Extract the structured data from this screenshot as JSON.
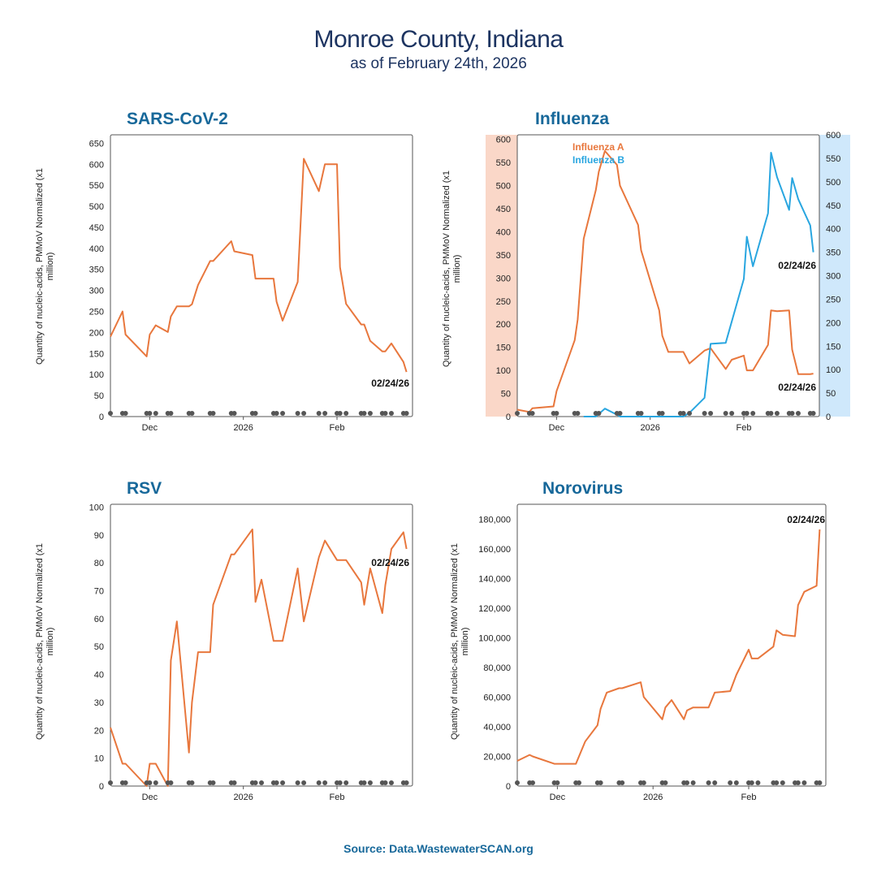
{
  "header": {
    "title": "Monroe County, Indiana",
    "subtitle": "as of February 24th, 2026"
  },
  "source": "Source: Data.WastewaterSCAN.org",
  "colors": {
    "series_a": "#e8773d",
    "series_b": "#29a6e0",
    "axis_band_left": "#fad7c8",
    "axis_band_right": "#cfe8fb",
    "sample_dot": "#555555",
    "title_blue": "#17689a"
  },
  "chart_data": [
    {
      "type": "line",
      "title": "SARS-CoV-2",
      "ylabel": "Quantity of nucleic-acids, PMMoV Normalized (x1 million)",
      "x_ticks": [
        {
          "label": "Dec",
          "date": "2025-12-01"
        },
        {
          "label": "2026",
          "date": "2026-01-01"
        },
        {
          "label": "Feb",
          "date": "2026-02-01"
        }
      ],
      "x_range": [
        "2025-11-18",
        "2026-02-26"
      ],
      "ylim": [
        0,
        670
      ],
      "y_ticks": [
        0,
        50,
        100,
        150,
        200,
        250,
        300,
        350,
        400,
        450,
        500,
        550,
        600,
        650
      ],
      "end_label": "02/24/26",
      "series": [
        {
          "values": [
            [
              "2025-11-18",
              190
            ],
            [
              "2025-11-22",
              250
            ],
            [
              "2025-11-23",
              195
            ],
            [
              "2025-11-30",
              143
            ],
            [
              "2025-12-01",
              195
            ],
            [
              "2025-12-03",
              217
            ],
            [
              "2025-12-07",
              201
            ],
            [
              "2025-12-08",
              238
            ],
            [
              "2025-12-10",
              262
            ],
            [
              "2025-12-14",
              262
            ],
            [
              "2025-12-15",
              267
            ],
            [
              "2025-12-17",
              313
            ],
            [
              "2025-12-21",
              370
            ],
            [
              "2025-12-22",
              370
            ],
            [
              "2025-12-28",
              417
            ],
            [
              "2025-12-29",
              393
            ],
            [
              "2026-01-04",
              384
            ],
            [
              "2026-01-05",
              328
            ],
            [
              "2026-01-11",
              328
            ],
            [
              "2026-01-12",
              273
            ],
            [
              "2026-01-14",
              228
            ],
            [
              "2026-01-19",
              320
            ],
            [
              "2026-01-21",
              613
            ],
            [
              "2026-01-26",
              536
            ],
            [
              "2026-01-28",
              600
            ],
            [
              "2026-02-01",
              600
            ],
            [
              "2026-02-02",
              355
            ],
            [
              "2026-02-04",
              268
            ],
            [
              "2026-02-09",
              219
            ],
            [
              "2026-02-10",
              219
            ],
            [
              "2026-02-12",
              180
            ],
            [
              "2026-02-16",
              155
            ],
            [
              "2026-02-17",
              155
            ],
            [
              "2026-02-19",
              174
            ],
            [
              "2026-02-23",
              130
            ],
            [
              "2026-02-24",
              106
            ]
          ]
        }
      ],
      "sample_dates": [
        "2025-11-18",
        "2025-11-22",
        "2025-11-23",
        "2025-11-30",
        "2025-12-01",
        "2025-12-03",
        "2025-12-07",
        "2025-12-08",
        "2025-12-14",
        "2025-12-15",
        "2025-12-21",
        "2025-12-22",
        "2025-12-28",
        "2025-12-29",
        "2026-01-04",
        "2026-01-05",
        "2026-01-11",
        "2026-01-12",
        "2026-01-14",
        "2026-01-19",
        "2026-01-21",
        "2026-01-26",
        "2026-01-28",
        "2026-02-01",
        "2026-02-02",
        "2026-02-04",
        "2026-02-09",
        "2026-02-10",
        "2026-02-12",
        "2026-02-16",
        "2026-02-17",
        "2026-02-19",
        "2026-02-23",
        "2026-02-24"
      ]
    },
    {
      "type": "line",
      "title": "Influenza",
      "ylabel": "Quantity of nucleic-acids, PMMoV Normalized (x1 million)",
      "x_ticks": [
        {
          "label": "Dec",
          "date": "2025-12-01"
        },
        {
          "label": "2026",
          "date": "2026-01-01"
        },
        {
          "label": "Feb",
          "date": "2026-02-01"
        }
      ],
      "x_range": [
        "2025-11-18",
        "2026-02-26"
      ],
      "ylim": [
        0,
        610
      ],
      "y_ticks": [
        0,
        50,
        100,
        150,
        200,
        250,
        300,
        350,
        400,
        450,
        500,
        550,
        600
      ],
      "y2lim": [
        0,
        600
      ],
      "y2_ticks": [
        0,
        50,
        100,
        150,
        200,
        250,
        300,
        350,
        400,
        450,
        500,
        550,
        600
      ],
      "legend_position": "top-left",
      "end_label_b": "02/24/26",
      "end_label_a": "02/24/26",
      "series": [
        {
          "name": "Influenza A",
          "axis": "left",
          "values": [
            [
              "2025-11-18",
              15
            ],
            [
              "2025-11-22",
              10
            ],
            [
              "2025-11-23",
              18
            ],
            [
              "2025-11-30",
              22
            ],
            [
              "2025-12-01",
              55
            ],
            [
              "2025-12-07",
              165
            ],
            [
              "2025-12-08",
              210
            ],
            [
              "2025-12-10",
              385
            ],
            [
              "2025-12-14",
              490
            ],
            [
              "2025-12-15",
              530
            ],
            [
              "2025-12-17",
              575
            ],
            [
              "2025-12-21",
              545
            ],
            [
              "2025-12-22",
              500
            ],
            [
              "2025-12-28",
              415
            ],
            [
              "2025-12-29",
              360
            ],
            [
              "2026-01-04",
              230
            ],
            [
              "2026-01-05",
              175
            ],
            [
              "2026-01-07",
              140
            ],
            [
              "2026-01-12",
              140
            ],
            [
              "2026-01-14",
              115
            ],
            [
              "2026-01-19",
              143
            ],
            [
              "2026-01-21",
              148
            ],
            [
              "2026-01-26",
              103
            ],
            [
              "2026-01-28",
              123
            ],
            [
              "2026-02-01",
              132
            ],
            [
              "2026-02-02",
              100
            ],
            [
              "2026-02-04",
              100
            ],
            [
              "2026-02-09",
              155
            ],
            [
              "2026-02-10",
              230
            ],
            [
              "2026-02-12",
              228
            ],
            [
              "2026-02-16",
              230
            ],
            [
              "2026-02-17",
              145
            ],
            [
              "2026-02-19",
              92
            ],
            [
              "2026-02-23",
              92
            ],
            [
              "2026-02-24",
              93
            ]
          ]
        },
        {
          "name": "Influenza B",
          "axis": "right",
          "values": [
            [
              "2025-12-10",
              0
            ],
            [
              "2025-12-14",
              0
            ],
            [
              "2025-12-17",
              17
            ],
            [
              "2025-12-21",
              4
            ],
            [
              "2025-12-22",
              0
            ],
            [
              "2026-01-12",
              0
            ],
            [
              "2026-01-14",
              8
            ],
            [
              "2026-01-19",
              40
            ],
            [
              "2026-01-21",
              155
            ],
            [
              "2026-01-26",
              157
            ],
            [
              "2026-02-01",
              293
            ],
            [
              "2026-02-02",
              383
            ],
            [
              "2026-02-04",
              320
            ],
            [
              "2026-02-09",
              433
            ],
            [
              "2026-02-10",
              562
            ],
            [
              "2026-02-12",
              510
            ],
            [
              "2026-02-16",
              440
            ],
            [
              "2026-02-17",
              508
            ],
            [
              "2026-02-19",
              463
            ],
            [
              "2026-02-23",
              407
            ],
            [
              "2026-02-24",
              350
            ]
          ]
        }
      ],
      "sample_dates": [
        "2025-11-18",
        "2025-11-22",
        "2025-11-23",
        "2025-11-30",
        "2025-12-01",
        "2025-12-07",
        "2025-12-08",
        "2025-12-14",
        "2025-12-15",
        "2025-12-21",
        "2025-12-22",
        "2025-12-28",
        "2025-12-29",
        "2026-01-04",
        "2026-01-05",
        "2026-01-11",
        "2026-01-12",
        "2026-01-14",
        "2026-01-19",
        "2026-01-21",
        "2026-01-26",
        "2026-01-28",
        "2026-02-01",
        "2026-02-02",
        "2026-02-04",
        "2026-02-09",
        "2026-02-10",
        "2026-02-12",
        "2026-02-16",
        "2026-02-17",
        "2026-02-19",
        "2026-02-23",
        "2026-02-24"
      ]
    },
    {
      "type": "line",
      "title": "RSV",
      "ylabel": "Quantity of nucleic-acids, PMMoV Normalized (x1 million)",
      "x_ticks": [
        {
          "label": "Dec",
          "date": "2025-12-01"
        },
        {
          "label": "2026",
          "date": "2026-01-01"
        },
        {
          "label": "Feb",
          "date": "2026-02-01"
        }
      ],
      "x_range": [
        "2025-11-18",
        "2026-02-26"
      ],
      "ylim": [
        0,
        101
      ],
      "y_ticks": [
        0,
        10,
        20,
        30,
        40,
        50,
        60,
        70,
        80,
        90,
        100
      ],
      "end_label": "02/24/26",
      "series": [
        {
          "values": [
            [
              "2025-11-18",
              21
            ],
            [
              "2025-11-22",
              8
            ],
            [
              "2025-11-23",
              8
            ],
            [
              "2025-11-30",
              0
            ],
            [
              "2025-12-01",
              8
            ],
            [
              "2025-12-03",
              8
            ],
            [
              "2025-12-07",
              0
            ],
            [
              "2025-12-08",
              45
            ],
            [
              "2025-12-10",
              59
            ],
            [
              "2025-12-14",
              12
            ],
            [
              "2025-12-15",
              30
            ],
            [
              "2025-12-17",
              48
            ],
            [
              "2025-12-21",
              48
            ],
            [
              "2025-12-22",
              65
            ],
            [
              "2025-12-28",
              83
            ],
            [
              "2025-12-29",
              83
            ],
            [
              "2026-01-04",
              92
            ],
            [
              "2026-01-05",
              66
            ],
            [
              "2026-01-07",
              74
            ],
            [
              "2026-01-11",
              52
            ],
            [
              "2026-01-14",
              52
            ],
            [
              "2026-01-19",
              78
            ],
            [
              "2026-01-21",
              59
            ],
            [
              "2026-01-26",
              82
            ],
            [
              "2026-01-28",
              88
            ],
            [
              "2026-02-01",
              81
            ],
            [
              "2026-02-04",
              81
            ],
            [
              "2026-02-09",
              73
            ],
            [
              "2026-02-10",
              65
            ],
            [
              "2026-02-12",
              78
            ],
            [
              "2026-02-16",
              62
            ],
            [
              "2026-02-17",
              72
            ],
            [
              "2026-02-19",
              85
            ],
            [
              "2026-02-23",
              91
            ],
            [
              "2026-02-24",
              85
            ]
          ]
        }
      ],
      "sample_dates": [
        "2025-11-18",
        "2025-11-22",
        "2025-11-23",
        "2025-11-30",
        "2025-12-01",
        "2025-12-03",
        "2025-12-07",
        "2025-12-08",
        "2025-12-14",
        "2025-12-15",
        "2025-12-21",
        "2025-12-22",
        "2025-12-28",
        "2025-12-29",
        "2026-01-04",
        "2026-01-05",
        "2026-01-07",
        "2026-01-11",
        "2026-01-12",
        "2026-01-14",
        "2026-01-19",
        "2026-01-21",
        "2026-01-26",
        "2026-01-28",
        "2026-02-01",
        "2026-02-02",
        "2026-02-04",
        "2026-02-09",
        "2026-02-10",
        "2026-02-12",
        "2026-02-16",
        "2026-02-17",
        "2026-02-19",
        "2026-02-23",
        "2026-02-24"
      ]
    },
    {
      "type": "line",
      "title": "Norovirus",
      "ylabel": "Quantity of nucleic-acids, PMMoV Normalized (x1 million)",
      "x_ticks": [
        {
          "label": "Dec",
          "date": "2025-12-01"
        },
        {
          "label": "2026",
          "date": "2026-01-01"
        },
        {
          "label": "Feb",
          "date": "2026-02-01"
        }
      ],
      "x_range": [
        "2025-11-18",
        "2026-02-26"
      ],
      "ylim": [
        0,
        190000
      ],
      "y_ticks": [
        0,
        20000,
        40000,
        60000,
        80000,
        100000,
        120000,
        140000,
        160000,
        180000
      ],
      "end_label": "02/24/26",
      "series": [
        {
          "values": [
            [
              "2025-11-18",
              17000
            ],
            [
              "2025-11-22",
              21000
            ],
            [
              "2025-11-23",
              20000
            ],
            [
              "2025-11-30",
              15000
            ],
            [
              "2025-12-01",
              15000
            ],
            [
              "2025-12-07",
              15000
            ],
            [
              "2025-12-10",
              30000
            ],
            [
              "2025-12-14",
              41000
            ],
            [
              "2025-12-15",
              52000
            ],
            [
              "2025-12-17",
              63000
            ],
            [
              "2025-12-21",
              66000
            ],
            [
              "2025-12-22",
              66000
            ],
            [
              "2025-12-28",
              70000
            ],
            [
              "2025-12-29",
              60000
            ],
            [
              "2026-01-04",
              45000
            ],
            [
              "2026-01-05",
              53000
            ],
            [
              "2026-01-07",
              58000
            ],
            [
              "2026-01-11",
              45000
            ],
            [
              "2026-01-12",
              51000
            ],
            [
              "2026-01-14",
              53000
            ],
            [
              "2026-01-19",
              53000
            ],
            [
              "2026-01-21",
              63000
            ],
            [
              "2026-01-26",
              64000
            ],
            [
              "2026-01-28",
              75000
            ],
            [
              "2026-02-01",
              92000
            ],
            [
              "2026-02-02",
              86000
            ],
            [
              "2026-02-04",
              86000
            ],
            [
              "2026-02-09",
              94000
            ],
            [
              "2026-02-10",
              105000
            ],
            [
              "2026-02-12",
              102000
            ],
            [
              "2026-02-16",
              101000
            ],
            [
              "2026-02-17",
              122000
            ],
            [
              "2026-02-19",
              131000
            ],
            [
              "2026-02-23",
              135000
            ],
            [
              "2026-02-24",
              173000
            ]
          ]
        }
      ],
      "sample_dates": [
        "2025-11-18",
        "2025-11-22",
        "2025-11-23",
        "2025-11-30",
        "2025-12-01",
        "2025-12-07",
        "2025-12-08",
        "2025-12-14",
        "2025-12-15",
        "2025-12-21",
        "2025-12-22",
        "2025-12-28",
        "2025-12-29",
        "2026-01-04",
        "2026-01-05",
        "2026-01-11",
        "2026-01-12",
        "2026-01-14",
        "2026-01-19",
        "2026-01-21",
        "2026-01-26",
        "2026-01-28",
        "2026-02-01",
        "2026-02-02",
        "2026-02-04",
        "2026-02-09",
        "2026-02-10",
        "2026-02-12",
        "2026-02-16",
        "2026-02-17",
        "2026-02-19",
        "2026-02-23",
        "2026-02-24"
      ]
    }
  ]
}
